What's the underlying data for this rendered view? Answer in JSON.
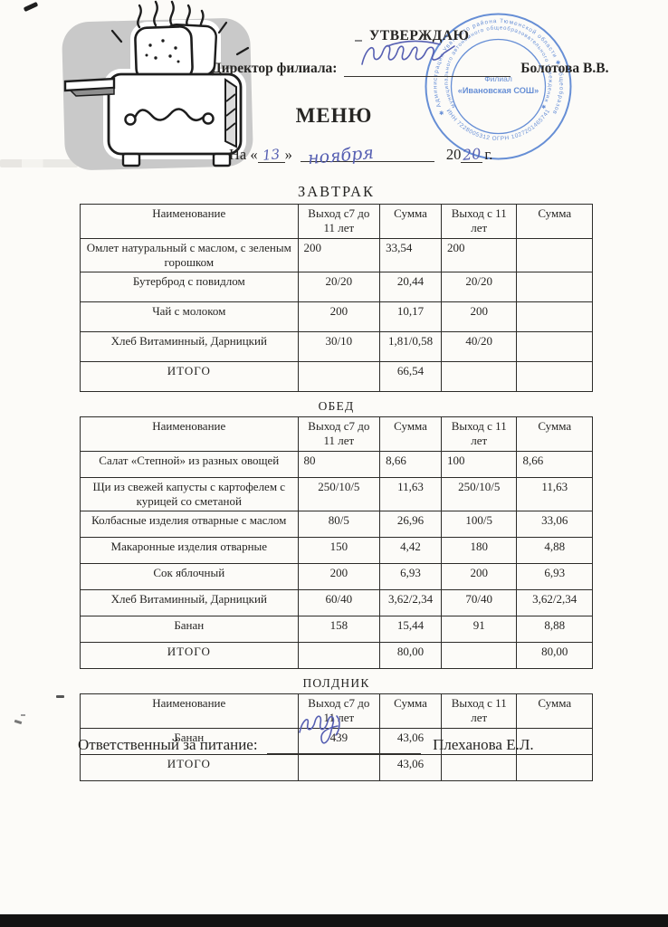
{
  "document": {
    "approve_label": "УТВЕРЖДАЮ",
    "director_label": "Директор филиала:",
    "director_name": "Болотова В.В.",
    "title": "МЕНЮ",
    "date_line": {
      "prefix": "На «",
      "day": "13",
      "close_quote": "»",
      "month": "ноября",
      "year_printed": "20",
      "year_handwritten": "20",
      "suffix": "г."
    },
    "footer_label": "Ответственный за питание:",
    "footer_name": "Плеханова Е.Л."
  },
  "stamp": {
    "color": "#4d7cd0",
    "ring_text_outer": "✱ Администрация Уватского района Тюменской области ✱ общеобразовательного",
    "ring_text_inner": "муниципального автономного общеобразовательного учреждения ✱",
    "bottom_arc_text": "ИНН 7228005312  ОГРН 1027201465741",
    "center_line1": "Филиал",
    "center_line2": "«Ивановская СОШ»"
  },
  "menu": {
    "columns": [
      "Наименование",
      "Выход с7 до 11 лет",
      "Сумма",
      "Выход с 11 лет",
      "Сумма"
    ],
    "sections": [
      {
        "title": "ЗАВТРАК",
        "rows": [
          {
            "name": "Омлет натуральный с маслом, с зеленым горошком",
            "values": [
              "200",
              "33,54",
              "200",
              ""
            ],
            "align": "left"
          },
          {
            "name": "Бутерброд с повидлом",
            "values": [
              "20/20",
              "20,44",
              "20/20",
              ""
            ],
            "align": "center"
          },
          {
            "name": "Чай с молоком",
            "values": [
              "200",
              "10,17",
              "200",
              ""
            ],
            "align": "center"
          },
          {
            "name": "Хлеб Витаминный, Дарницкий",
            "values": [
              "30/10",
              "1,81/0,58",
              "40/20",
              ""
            ],
            "align": "center"
          },
          {
            "name": "ИТОГО",
            "values": [
              "",
              "66,54",
              "",
              ""
            ],
            "align": "center",
            "total": true
          }
        ]
      },
      {
        "title": "ОБЕД",
        "rows": [
          {
            "name": "Салат «Степной» из разных овощей",
            "values": [
              "80",
              "8,66",
              "100",
              "8,66"
            ],
            "align": "left"
          },
          {
            "name": "Щи из свежей капусты с картофелем с курицей со сметаной",
            "values": [
              "250/10/5",
              "11,63",
              "250/10/5",
              "11,63"
            ],
            "align": "center"
          },
          {
            "name": "Колбасные изделия отварные с маслом",
            "values": [
              "80/5",
              "26,96",
              "100/5",
              "33,06"
            ],
            "align": "center"
          },
          {
            "name": "Макаронные изделия отварные",
            "values": [
              "150",
              "4,42",
              "180",
              "4,88"
            ],
            "align": "center"
          },
          {
            "name": "Сок яблочный",
            "values": [
              "200",
              "6,93",
              "200",
              "6,93"
            ],
            "align": "center"
          },
          {
            "name": "Хлеб Витаминный, Дарницкий",
            "values": [
              "60/40",
              "3,62/2,34",
              "70/40",
              "3,62/2,34"
            ],
            "align": "center"
          },
          {
            "name": "Банан",
            "values": [
              "158",
              "15,44",
              "91",
              "8,88"
            ],
            "align": "center"
          },
          {
            "name": "ИТОГО",
            "values": [
              "",
              "80,00",
              "",
              "80,00"
            ],
            "align": "center",
            "total": true
          }
        ]
      },
      {
        "title": "ПОЛДНИК",
        "rows": [
          {
            "name": "Банан",
            "values": [
              "439",
              "43,06",
              "",
              ""
            ],
            "align": "center"
          },
          {
            "name": "ИТОГО",
            "values": [
              "",
              "43,06",
              "",
              ""
            ],
            "align": "center",
            "total": true
          }
        ]
      }
    ]
  }
}
